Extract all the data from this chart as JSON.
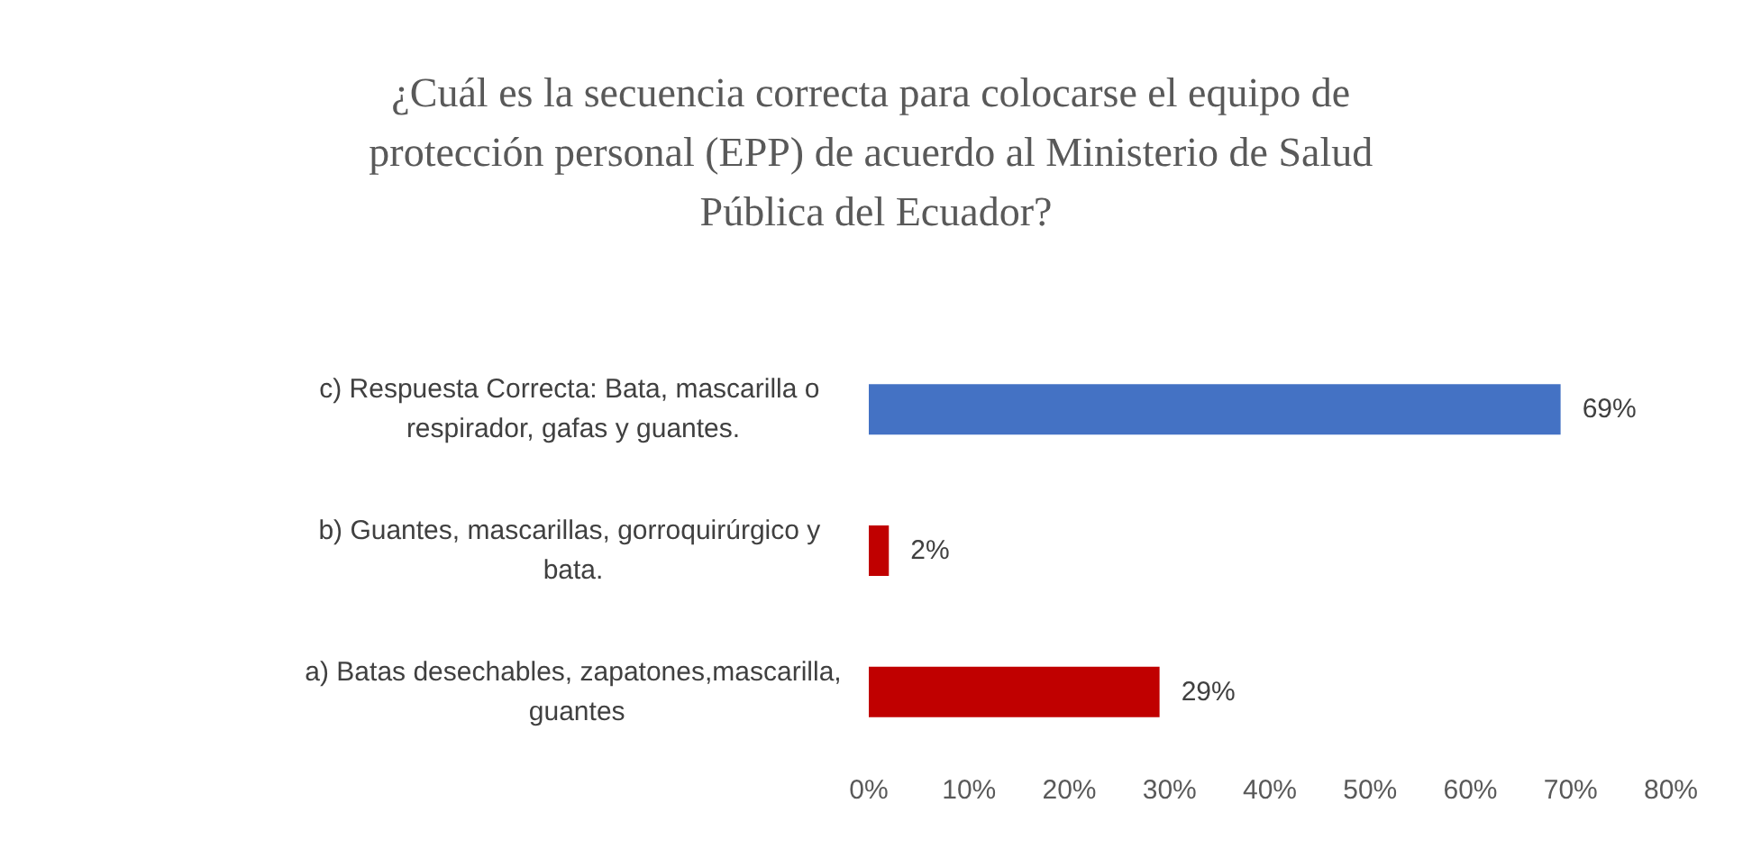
{
  "chart_data": {
    "type": "bar",
    "orientation": "horizontal",
    "title": "¿Cuál es la secuencia correcta para colocarse el equipo de protección personal (EPP) de acuerdo al Ministerio de Salud Pública del Ecuador?",
    "categories": [
      "c) Respuesta Correcta: Bata, mascarilla o respirador, gafas y guantes.",
      "b) Guantes, mascarillas, gorroquirúrgico y bata.",
      "a) Batas desechables, zapatones,mascarilla, guantes"
    ],
    "values": [
      69,
      2,
      29
    ],
    "colors": [
      "#4472c4",
      "#c00000",
      "#c00000"
    ],
    "value_labels": [
      "69%",
      "2%",
      "29%"
    ],
    "xlim": [
      0,
      80
    ],
    "xticks": [
      {
        "value": 0,
        "label": "0%"
      },
      {
        "value": 10,
        "label": "10%"
      },
      {
        "value": 20,
        "label": "20%"
      },
      {
        "value": 30,
        "label": "30%"
      },
      {
        "value": 40,
        "label": "40%"
      },
      {
        "value": 50,
        "label": "50%"
      },
      {
        "value": 60,
        "label": "60%"
      },
      {
        "value": 70,
        "label": "70%"
      },
      {
        "value": 80,
        "label": "80%"
      }
    ],
    "grid": false
  }
}
